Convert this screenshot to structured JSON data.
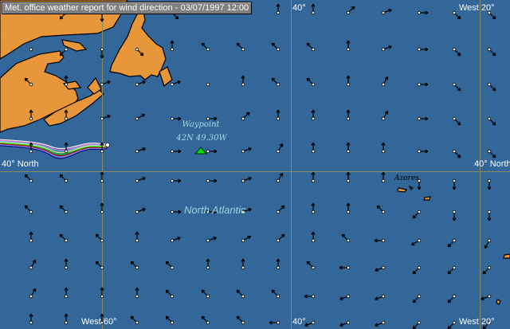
{
  "title": "Met. office weather report for wind direction - 03/07/1997    12:00",
  "colors": {
    "ocean": "#336699",
    "land": "#e8963a",
    "grid": "#8c8c64",
    "waypoint": "#00e000",
    "label_text": "#a8d8e8"
  },
  "grid_labels": {
    "top_40": "40°",
    "top_west20": "West 20°",
    "left_40n": "40° North",
    "right_40n": "40° North",
    "bottom_west60": "West 60°",
    "bottom_40": "40°",
    "bottom_west20": "West 20°"
  },
  "waypoint": {
    "label": "Waypoint",
    "position": "42N 49.30W",
    "icon": "triangle-marker-icon"
  },
  "sea_label": "North Atlantic",
  "island_label": "Azores",
  "wind_arrows_note_units": "compass degrees arrow points to; null = no arrow",
  "wind_directions": [
    [
      null,
      225,
      180,
      null,
      135,
      null,
      0,
      0,
      0,
      45,
      70,
      90,
      135,
      135
    ],
    [
      null,
      225,
      180,
      135,
      0,
      315,
      315,
      315,
      315,
      0,
      70,
      90,
      135,
      135
    ],
    [
      315,
      0,
      70,
      70,
      70,
      null,
      0,
      315,
      315,
      0,
      30,
      90,
      135,
      135
    ],
    [
      0,
      0,
      70,
      60,
      90,
      90,
      45,
      0,
      0,
      0,
      30,
      90,
      135,
      135
    ],
    [
      0,
      0,
      0,
      70,
      90,
      90,
      70,
      30,
      0,
      0,
      0,
      90,
      135,
      135
    ],
    [
      315,
      315,
      0,
      70,
      90,
      90,
      70,
      30,
      0,
      0,
      0,
      180,
      180,
      180
    ],
    [
      315,
      315,
      0,
      70,
      90,
      90,
      70,
      45,
      0,
      0,
      315,
      225,
      180,
      180
    ],
    [
      0,
      315,
      315,
      0,
      70,
      70,
      60,
      45,
      0,
      315,
      270,
      240,
      225,
      210
    ],
    [
      30,
      0,
      315,
      315,
      315,
      0,
      0,
      0,
      315,
      270,
      250,
      225,
      225,
      225
    ],
    [
      30,
      0,
      0,
      0,
      315,
      315,
      315,
      315,
      270,
      250,
      250,
      225,
      225,
      250
    ],
    [
      0,
      0,
      0,
      315,
      315,
      315,
      315,
      270,
      250,
      250,
      250,
      225,
      225,
      225
    ]
  ],
  "track_colors": [
    "#ffffff",
    "#ff66cc",
    "#66ccff",
    "#ffff66",
    "#00cc00",
    "#cc0000",
    "#9999ff",
    "#000080"
  ]
}
